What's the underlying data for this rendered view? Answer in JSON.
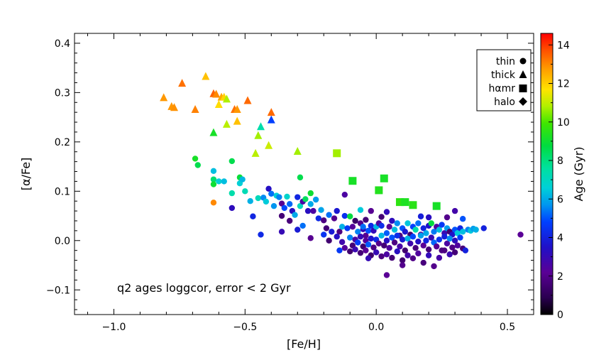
{
  "chart_data": {
    "type": "scatter",
    "xlabel": "[Fe/H]",
    "ylabel": "[α/Fe]",
    "xlim": [
      -1.15,
      0.6
    ],
    "ylim": [
      -0.15,
      0.42
    ],
    "x_ticks": [
      -1.0,
      -0.5,
      0.0,
      0.5
    ],
    "x_tick_labels": [
      "−1.0",
      "−0.5",
      "0.0",
      "0.5"
    ],
    "y_ticks": [
      -0.1,
      0.0,
      0.1,
      0.2,
      0.3,
      0.4
    ],
    "y_tick_labels": [
      "−0.1",
      "0.0",
      "0.1",
      "0.2",
      "0.3",
      "0.4"
    ],
    "annotation": "q2 ages loggcor, error < 2 Gyr",
    "colorbar": {
      "label": "Age (Gyr)",
      "range": [
        0,
        14.6
      ],
      "ticks": [
        0,
        2,
        4,
        6,
        8,
        10,
        12,
        14
      ],
      "tick_labels": [
        "0",
        "2",
        "4",
        "6",
        "8",
        "10",
        "12",
        "14"
      ],
      "colormap": "rainbow"
    },
    "legend": {
      "position": "top-right",
      "entries": [
        {
          "label": "thin",
          "marker": "circle"
        },
        {
          "label": "thick",
          "marker": "triangle"
        },
        {
          "label": "hαmr",
          "marker": "square"
        },
        {
          "label": "halo",
          "marker": "diamond"
        }
      ]
    },
    "series": [
      {
        "name": "thick",
        "marker": "triangle",
        "points": [
          [
            -0.81,
            0.29,
            12.8
          ],
          [
            -0.78,
            0.272,
            12.8
          ],
          [
            -0.77,
            0.27,
            12.9
          ],
          [
            -0.74,
            0.319,
            13.3
          ],
          [
            -0.69,
            0.266,
            13.1
          ],
          [
            -0.65,
            0.333,
            12.2
          ],
          [
            -0.62,
            0.298,
            13.5
          ],
          [
            -0.61,
            0.297,
            13.0
          ],
          [
            -0.6,
            0.276,
            11.8
          ],
          [
            -0.59,
            0.291,
            12.6
          ],
          [
            -0.58,
            0.291,
            11.9
          ],
          [
            -0.57,
            0.287,
            10.8
          ],
          [
            -0.57,
            0.236,
            10.9
          ],
          [
            -0.54,
            0.266,
            13.3
          ],
          [
            -0.53,
            0.266,
            12.8
          ],
          [
            -0.53,
            0.242,
            12.2
          ],
          [
            -0.49,
            0.284,
            13.4
          ],
          [
            -0.4,
            0.26,
            13.4
          ],
          [
            -0.46,
            0.177,
            10.9
          ],
          [
            -0.45,
            0.213,
            10.7
          ],
          [
            -0.44,
            0.231,
            7.4
          ],
          [
            -0.41,
            0.193,
            11.1
          ],
          [
            -0.4,
            0.245,
            4.8
          ],
          [
            -0.3,
            0.181,
            10.7
          ],
          [
            -0.62,
            0.219,
            9.2
          ]
        ]
      },
      {
        "name": "hαmr",
        "marker": "square",
        "points": [
          [
            -0.15,
            0.177,
            10.7
          ],
          [
            -0.09,
            0.121,
            9.2
          ],
          [
            0.03,
            0.126,
            9.2
          ],
          [
            0.01,
            0.102,
            9.4
          ],
          [
            0.09,
            0.078,
            9.6
          ],
          [
            0.11,
            0.078,
            9.3
          ],
          [
            0.14,
            0.072,
            9.5
          ],
          [
            0.23,
            0.07,
            9.2
          ]
        ]
      },
      {
        "name": "halo",
        "marker": "diamond",
        "points": []
      },
      {
        "name": "thin",
        "marker": "circle",
        "points": [
          [
            -0.69,
            0.166,
            9.2
          ],
          [
            -0.68,
            0.153,
            8.6
          ],
          [
            -0.62,
            0.141,
            6.3
          ],
          [
            -0.62,
            0.124,
            8.2
          ],
          [
            -0.62,
            0.114,
            9.0
          ],
          [
            -0.62,
            0.077,
            13.0
          ],
          [
            -0.6,
            0.12,
            6.6
          ],
          [
            -0.58,
            0.12,
            6.3
          ],
          [
            -0.55,
            0.161,
            8.6
          ],
          [
            -0.55,
            0.096,
            7.4
          ],
          [
            -0.55,
            0.066,
            3.2
          ],
          [
            -0.52,
            0.128,
            8.9
          ],
          [
            -0.52,
            0.116,
            6.6
          ],
          [
            -0.51,
            0.124,
            6.2
          ],
          [
            -0.5,
            0.1,
            7.2
          ],
          [
            -0.48,
            0.08,
            6.1
          ],
          [
            -0.47,
            0.049,
            4.1
          ],
          [
            -0.45,
            0.086,
            7.1
          ],
          [
            -0.43,
            0.087,
            5.6
          ],
          [
            -0.42,
            0.079,
            6.5
          ],
          [
            -0.41,
            0.105,
            3.4
          ],
          [
            -0.4,
            0.095,
            5.3
          ],
          [
            -0.39,
            0.07,
            5.7
          ],
          [
            -0.38,
            0.091,
            6.6
          ],
          [
            -0.37,
            0.088,
            5.5
          ],
          [
            -0.36,
            0.075,
            2.1
          ],
          [
            -0.36,
            0.05,
            1.6
          ],
          [
            -0.35,
            0.066,
            4.9
          ],
          [
            -0.34,
            0.089,
            6.8
          ],
          [
            -0.33,
            0.074,
            5.2
          ],
          [
            -0.33,
            0.04,
            1.7
          ],
          [
            -0.32,
            0.06,
            3.3
          ],
          [
            -0.31,
            0.052,
            6.0
          ],
          [
            -0.3,
            0.088,
            4.1
          ],
          [
            -0.29,
            0.128,
            8.6
          ],
          [
            -0.29,
            0.07,
            7.0
          ],
          [
            -0.28,
            0.079,
            2.6
          ],
          [
            -0.28,
            0.03,
            5.3
          ],
          [
            -0.27,
            0.084,
            8.4
          ],
          [
            -0.26,
            0.06,
            3.3
          ],
          [
            -0.25,
            0.096,
            9.0
          ],
          [
            -0.25,
            0.074,
            6.0
          ],
          [
            -0.24,
            0.06,
            2.5
          ],
          [
            -0.23,
            0.083,
            5.8
          ],
          [
            -0.22,
            0.045,
            4.2
          ],
          [
            -0.21,
            0.062,
            5.9
          ],
          [
            -0.2,
            0.041,
            1.8
          ],
          [
            -0.19,
            0.025,
            1.6
          ],
          [
            -0.18,
            0.052,
            5.3
          ],
          [
            -0.17,
            0.018,
            3.8
          ],
          [
            -0.16,
            0.045,
            2.0
          ],
          [
            -0.15,
            0.06,
            3.7
          ],
          [
            -0.14,
            0.018,
            1.8
          ],
          [
            -0.13,
            0.028,
            6.1
          ],
          [
            -0.12,
            0.093,
            2.5
          ],
          [
            -0.12,
            0.05,
            4.4
          ],
          [
            -0.11,
            0.025,
            4.6
          ],
          [
            -0.1,
            0.049,
            8.8
          ],
          [
            -0.09,
            0.028,
            2.3
          ],
          [
            -0.08,
            0.04,
            1.3
          ],
          [
            -0.07,
            0.018,
            5.5
          ],
          [
            -0.06,
            0.035,
            2.0
          ],
          [
            -0.06,
            0.062,
            6.5
          ],
          [
            -0.05,
            0.023,
            3.1
          ],
          [
            -0.05,
            0.028,
            5.3
          ],
          [
            -0.04,
            0.042,
            1.6
          ],
          [
            -0.04,
            0.01,
            2.1
          ],
          [
            -0.03,
            0.02,
            5.0
          ],
          [
            -0.02,
            0.03,
            4.2
          ],
          [
            -0.01,
            0.02,
            3.1
          ],
          [
            0.0,
            0.028,
            6.2
          ],
          [
            0.01,
            0.035,
            2.5
          ],
          [
            0.02,
            0.048,
            1.6
          ],
          [
            0.02,
            0.03,
            4.3
          ],
          [
            0.04,
            0.015,
            5.1
          ],
          [
            0.05,
            0.028,
            2.2
          ],
          [
            0.06,
            0.04,
            3.2
          ],
          [
            0.07,
            0.022,
            6.3
          ],
          [
            0.08,
            0.035,
            5.6
          ],
          [
            0.09,
            0.01,
            1.8
          ],
          [
            0.1,
            0.025,
            5.0
          ],
          [
            0.11,
            0.018,
            3.7
          ],
          [
            0.12,
            0.035,
            6.4
          ],
          [
            0.13,
            0.012,
            1.5
          ],
          [
            0.14,
            0.028,
            4.8
          ],
          [
            0.15,
            0.022,
            7.4
          ],
          [
            0.16,
            0.035,
            5.3
          ],
          [
            0.17,
            0.012,
            2.1
          ],
          [
            0.18,
            0.025,
            4.0
          ],
          [
            0.19,
            0.015,
            6.0
          ],
          [
            0.2,
            0.03,
            3.5
          ],
          [
            0.21,
            0.035,
            8.8
          ],
          [
            0.22,
            0.018,
            5.4
          ],
          [
            0.23,
            0.028,
            2.4
          ],
          [
            0.24,
            0.022,
            6.3
          ],
          [
            0.25,
            0.032,
            4.6
          ],
          [
            0.26,
            0.015,
            2.9
          ],
          [
            0.27,
            0.025,
            5.8
          ],
          [
            0.28,
            0.018,
            1.5
          ],
          [
            0.29,
            0.012,
            3.5
          ],
          [
            0.3,
            0.022,
            5.0
          ],
          [
            0.31,
            0.015,
            6.5
          ],
          [
            0.32,
            0.025,
            4.1
          ],
          [
            0.33,
            0.018,
            6.3
          ],
          [
            0.35,
            0.022,
            5.5
          ],
          [
            0.41,
            0.025,
            4.0
          ],
          [
            0.55,
            0.012,
            2.2
          ],
          [
            0.33,
            0.044,
            5.0
          ],
          [
            0.3,
            0.06,
            2.7
          ],
          [
            0.27,
            0.047,
            2.0
          ],
          [
            0.2,
            0.047,
            3.3
          ],
          [
            0.17,
            0.049,
            3.9
          ],
          [
            0.04,
            0.058,
            3.1
          ],
          [
            -0.02,
            0.06,
            2.1
          ],
          [
            -0.44,
            0.012,
            4.2
          ],
          [
            -0.36,
            0.018,
            3.0
          ],
          [
            -0.3,
            0.022,
            3.8
          ],
          [
            -0.25,
            0.005,
            2.1
          ],
          [
            -0.2,
            0.012,
            4.5
          ],
          [
            -0.18,
            0.0,
            1.5
          ],
          [
            -0.15,
            0.008,
            3.4
          ],
          [
            -0.13,
            -0.003,
            2.8
          ],
          [
            -0.1,
            0.006,
            5.5
          ],
          [
            -0.09,
            -0.01,
            1.6
          ],
          [
            -0.08,
            0.002,
            2.6
          ],
          [
            -0.07,
            -0.004,
            4.7
          ],
          [
            -0.06,
            0.008,
            3.0
          ],
          [
            -0.05,
            -0.012,
            1.4
          ],
          [
            -0.04,
            0.0,
            2.3
          ],
          [
            -0.03,
            -0.008,
            5.1
          ],
          [
            -0.02,
            0.004,
            3.6
          ],
          [
            -0.01,
            -0.014,
            1.8
          ],
          [
            0.0,
            0.002,
            4.2
          ],
          [
            0.01,
            -0.006,
            2.0
          ],
          [
            0.02,
            0.01,
            6.2
          ],
          [
            0.03,
            -0.01,
            1.6
          ],
          [
            0.04,
            0.0,
            3.3
          ],
          [
            0.05,
            -0.015,
            2.4
          ],
          [
            0.06,
            0.006,
            5.0
          ],
          [
            0.07,
            -0.004,
            1.8
          ],
          [
            0.08,
            0.01,
            4.3
          ],
          [
            0.09,
            -0.012,
            2.6
          ],
          [
            0.1,
            0.002,
            3.8
          ],
          [
            0.11,
            -0.02,
            1.5
          ],
          [
            0.12,
            0.004,
            6.1
          ],
          [
            0.13,
            -0.006,
            2.8
          ],
          [
            0.14,
            0.008,
            4.9
          ],
          [
            0.15,
            -0.015,
            1.7
          ],
          [
            0.16,
            -0.002,
            3.4
          ],
          [
            0.17,
            0.01,
            5.8
          ],
          [
            0.18,
            -0.01,
            2.2
          ],
          [
            0.19,
            0.0,
            4.1
          ],
          [
            0.2,
            -0.018,
            1.6
          ],
          [
            0.21,
            0.006,
            3.0
          ],
          [
            0.22,
            -0.004,
            5.2
          ],
          [
            0.23,
            -0.012,
            2.1
          ],
          [
            0.24,
            0.002,
            4.4
          ],
          [
            0.25,
            -0.02,
            1.8
          ],
          [
            0.26,
            0.008,
            3.9
          ],
          [
            0.27,
            -0.006,
            2.5
          ],
          [
            0.28,
            0.004,
            5.6
          ],
          [
            0.29,
            -0.014,
            1.9
          ],
          [
            0.3,
            0.0,
            3.2
          ],
          [
            0.31,
            -0.01,
            2.4
          ],
          [
            0.32,
            0.006,
            4.7
          ],
          [
            0.33,
            -0.016,
            1.7
          ],
          [
            -0.12,
            -0.015,
            2.3
          ],
          [
            -0.1,
            -0.022,
            1.5
          ],
          [
            -0.08,
            -0.018,
            2.9
          ],
          [
            -0.06,
            -0.025,
            1.6
          ],
          [
            -0.04,
            -0.02,
            2.2
          ],
          [
            -0.02,
            -0.03,
            1.4
          ],
          [
            0.0,
            -0.024,
            3.0
          ],
          [
            0.02,
            -0.032,
            1.8
          ],
          [
            0.04,
            -0.028,
            2.5
          ],
          [
            0.06,
            -0.035,
            1.6
          ],
          [
            0.08,
            -0.022,
            3.3
          ],
          [
            0.1,
            -0.04,
            1.5
          ],
          [
            0.12,
            -0.03,
            2.7
          ],
          [
            0.14,
            -0.036,
            1.9
          ],
          [
            0.16,
            -0.026,
            2.4
          ],
          [
            0.18,
            -0.045,
            1.7
          ],
          [
            0.2,
            -0.03,
            3.1
          ],
          [
            0.22,
            -0.052,
            2.0
          ],
          [
            0.24,
            -0.035,
            2.6
          ],
          [
            0.26,
            -0.02,
            1.8
          ],
          [
            0.28,
            -0.028,
            2.9
          ],
          [
            0.3,
            -0.024,
            1.6
          ],
          [
            0.04,
            -0.07,
            2.2
          ],
          [
            0.1,
            -0.05,
            2.0
          ],
          [
            -0.03,
            -0.036,
            3.0
          ],
          [
            0.34,
            -0.02,
            4.0
          ],
          [
            0.36,
            0.02,
            6.4
          ],
          [
            0.37,
            0.024,
            5.8
          ],
          [
            0.38,
            0.022,
            6.1
          ],
          [
            -0.14,
            -0.02,
            4.6
          ]
        ]
      }
    ]
  }
}
